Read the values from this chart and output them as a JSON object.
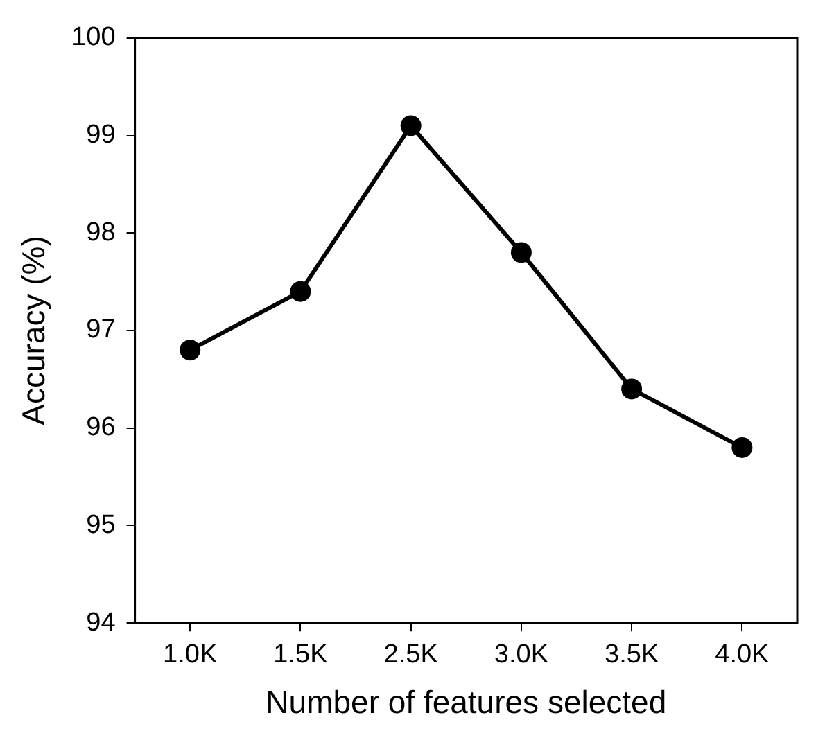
{
  "chart_data": {
    "type": "line",
    "xlabel": "Number of features selected",
    "ylabel": "Accuracy (%)",
    "categories": [
      "1.0K",
      "1.5K",
      "2.5K",
      "3.0K",
      "3.5K",
      "4.0K"
    ],
    "series": [
      {
        "color": "#000000",
        "values": [
          96.8,
          97.4,
          99.1,
          97.8,
          96.4,
          95.8
        ]
      }
    ],
    "ylim": [
      94,
      100
    ],
    "yticks": [
      94,
      95,
      96,
      97,
      98,
      99,
      100
    ],
    "grid": false,
    "legend": false,
    "marker": "circle",
    "line_style": "solid"
  }
}
